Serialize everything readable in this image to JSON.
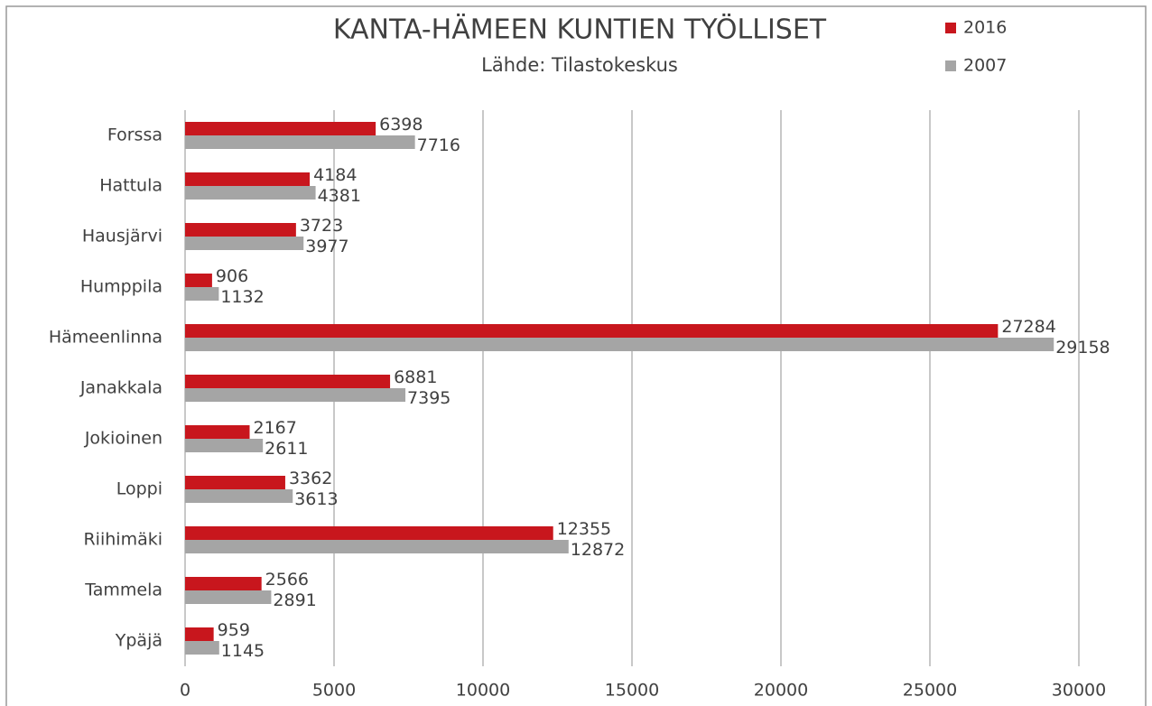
{
  "chart_data": {
    "type": "bar",
    "orientation": "horizontal",
    "title": "KANTA-HÄMEEN KUNTIEN TYÖLLISET",
    "subtitle": "Lähde: Tilastokeskus",
    "categories": [
      "Forssa",
      "Hattula",
      "Hausjärvi",
      "Humppila",
      "Hämeenlinna",
      "Janakkala",
      "Jokioinen",
      "Loppi",
      "Riihimäki",
      "Tammela",
      "Ypäjä"
    ],
    "series": [
      {
        "name": "2016",
        "color": "#c8161d",
        "values": [
          6398,
          4184,
          3723,
          906,
          27284,
          6881,
          2167,
          3362,
          12355,
          2566,
          959
        ]
      },
      {
        "name": "2007",
        "color": "#a5a5a5",
        "values": [
          7716,
          4381,
          3977,
          1132,
          29158,
          7395,
          2611,
          3613,
          12872,
          2891,
          1145
        ]
      }
    ],
    "xlim": [
      0,
      30000
    ],
    "xticks": [
      0,
      5000,
      10000,
      15000,
      20000,
      25000,
      30000
    ],
    "grid": true,
    "legend": "top-right"
  }
}
